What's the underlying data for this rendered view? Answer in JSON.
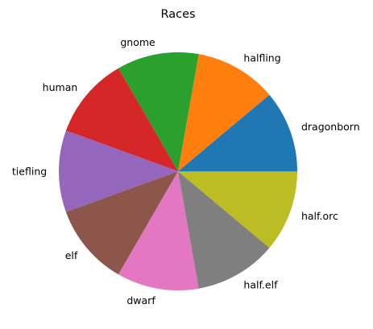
{
  "chart_data": {
    "type": "pie",
    "title": "Races",
    "start_angle_deg": 0,
    "direction": "counterclockwise",
    "categories": [
      "dragonborn",
      "halfling",
      "gnome",
      "human",
      "tiefling",
      "elf",
      "dwarf",
      "half.elf",
      "half.orc"
    ],
    "values": [
      1,
      1,
      1,
      1,
      1,
      1,
      1,
      1,
      1
    ],
    "colors": [
      "#1f77b4",
      "#ff7f0e",
      "#2ca02c",
      "#d62728",
      "#9467bd",
      "#8c564b",
      "#e377c2",
      "#7f7f7f",
      "#bcbd22"
    ],
    "xlabel": "",
    "ylabel": "",
    "legend": "none",
    "grid": false
  }
}
